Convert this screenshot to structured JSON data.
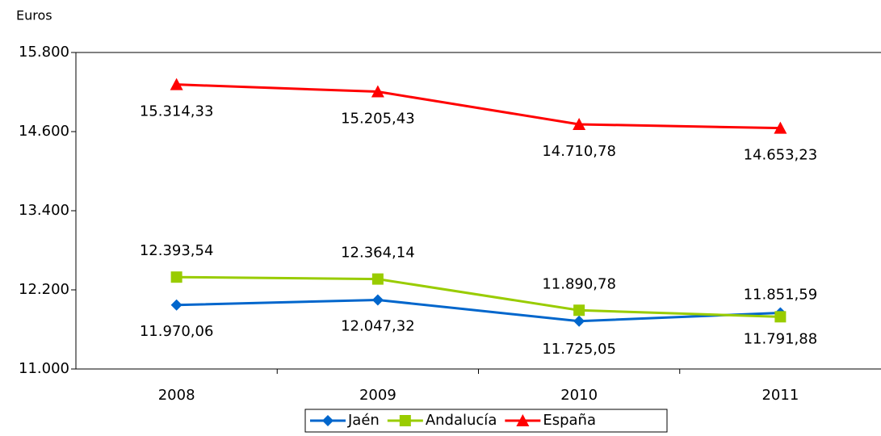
{
  "chart_data": {
    "type": "line",
    "y_label": "Euros",
    "categories": [
      "2008",
      "2009",
      "2010",
      "2011"
    ],
    "series": [
      {
        "name": "Jaén",
        "color": "#0066cc",
        "marker": "diamond",
        "values": [
          11970.06,
          12047.32,
          11725.05,
          11851.59
        ],
        "value_labels": [
          "11.970,06",
          "12.047,32",
          "11.725,05",
          "11.851,59"
        ]
      },
      {
        "name": "Andalucía",
        "color": "#99cc00",
        "marker": "square",
        "values": [
          12393.54,
          12364.14,
          11890.78,
          11791.88
        ],
        "value_labels": [
          "12.393,54",
          "12.364,14",
          "11.890,78",
          "11.791,88"
        ]
      },
      {
        "name": "España",
        "color": "#ff0000",
        "marker": "triangle",
        "values": [
          15314.33,
          15205.43,
          14710.78,
          14653.23
        ],
        "value_labels": [
          "15.314,33",
          "15.205,43",
          "14.710,78",
          "14.653,23"
        ]
      }
    ],
    "ylim": [
      11000,
      15800
    ],
    "yticks": [
      {
        "value": 11000,
        "label": "11.000"
      },
      {
        "value": 12200,
        "label": "12.200"
      },
      {
        "value": 13400,
        "label": "13.400"
      },
      {
        "value": 14600,
        "label": "14.600"
      },
      {
        "value": 15800,
        "label": "15.800"
      }
    ],
    "legend": "bottom"
  }
}
